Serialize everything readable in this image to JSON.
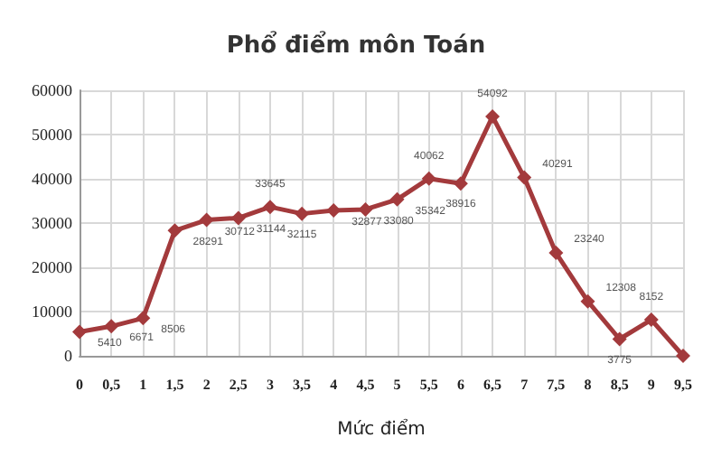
{
  "chart_data": {
    "type": "line",
    "title": "Phổ điểm môn Toán",
    "xlabel": "Mức điểm",
    "categories": [
      "0",
      "0,5",
      "1",
      "1,5",
      "2",
      "2,5",
      "3",
      "3,5",
      "4",
      "4,5",
      "5",
      "5,5",
      "6",
      "6,5",
      "7",
      "7,5",
      "8",
      "8,5",
      "9",
      "9,5"
    ],
    "series": [
      {
        "color": "#a33a3c",
        "values": [
          5410,
          6671,
          8506,
          28291,
          30712,
          31144,
          33645,
          32115,
          32877,
          33080,
          35342,
          40062,
          38916,
          54092,
          40291,
          23240,
          12308,
          3775,
          8152,
          0
        ],
        "value_labels": [
          "5410",
          "6671",
          "8506",
          "28291",
          "30712",
          "31144",
          "33645",
          "32115",
          "32877",
          "33080",
          "35342",
          "40062",
          "38916",
          "54092",
          "40291",
          "23240",
          "12308",
          "3775",
          "8152",
          null
        ]
      }
    ],
    "ylim": [
      0,
      60000
    ],
    "yticks": [
      0,
      10000,
      20000,
      30000,
      40000,
      50000,
      60000
    ],
    "grid": true,
    "marker": "diamond",
    "line_style": "solid"
  }
}
